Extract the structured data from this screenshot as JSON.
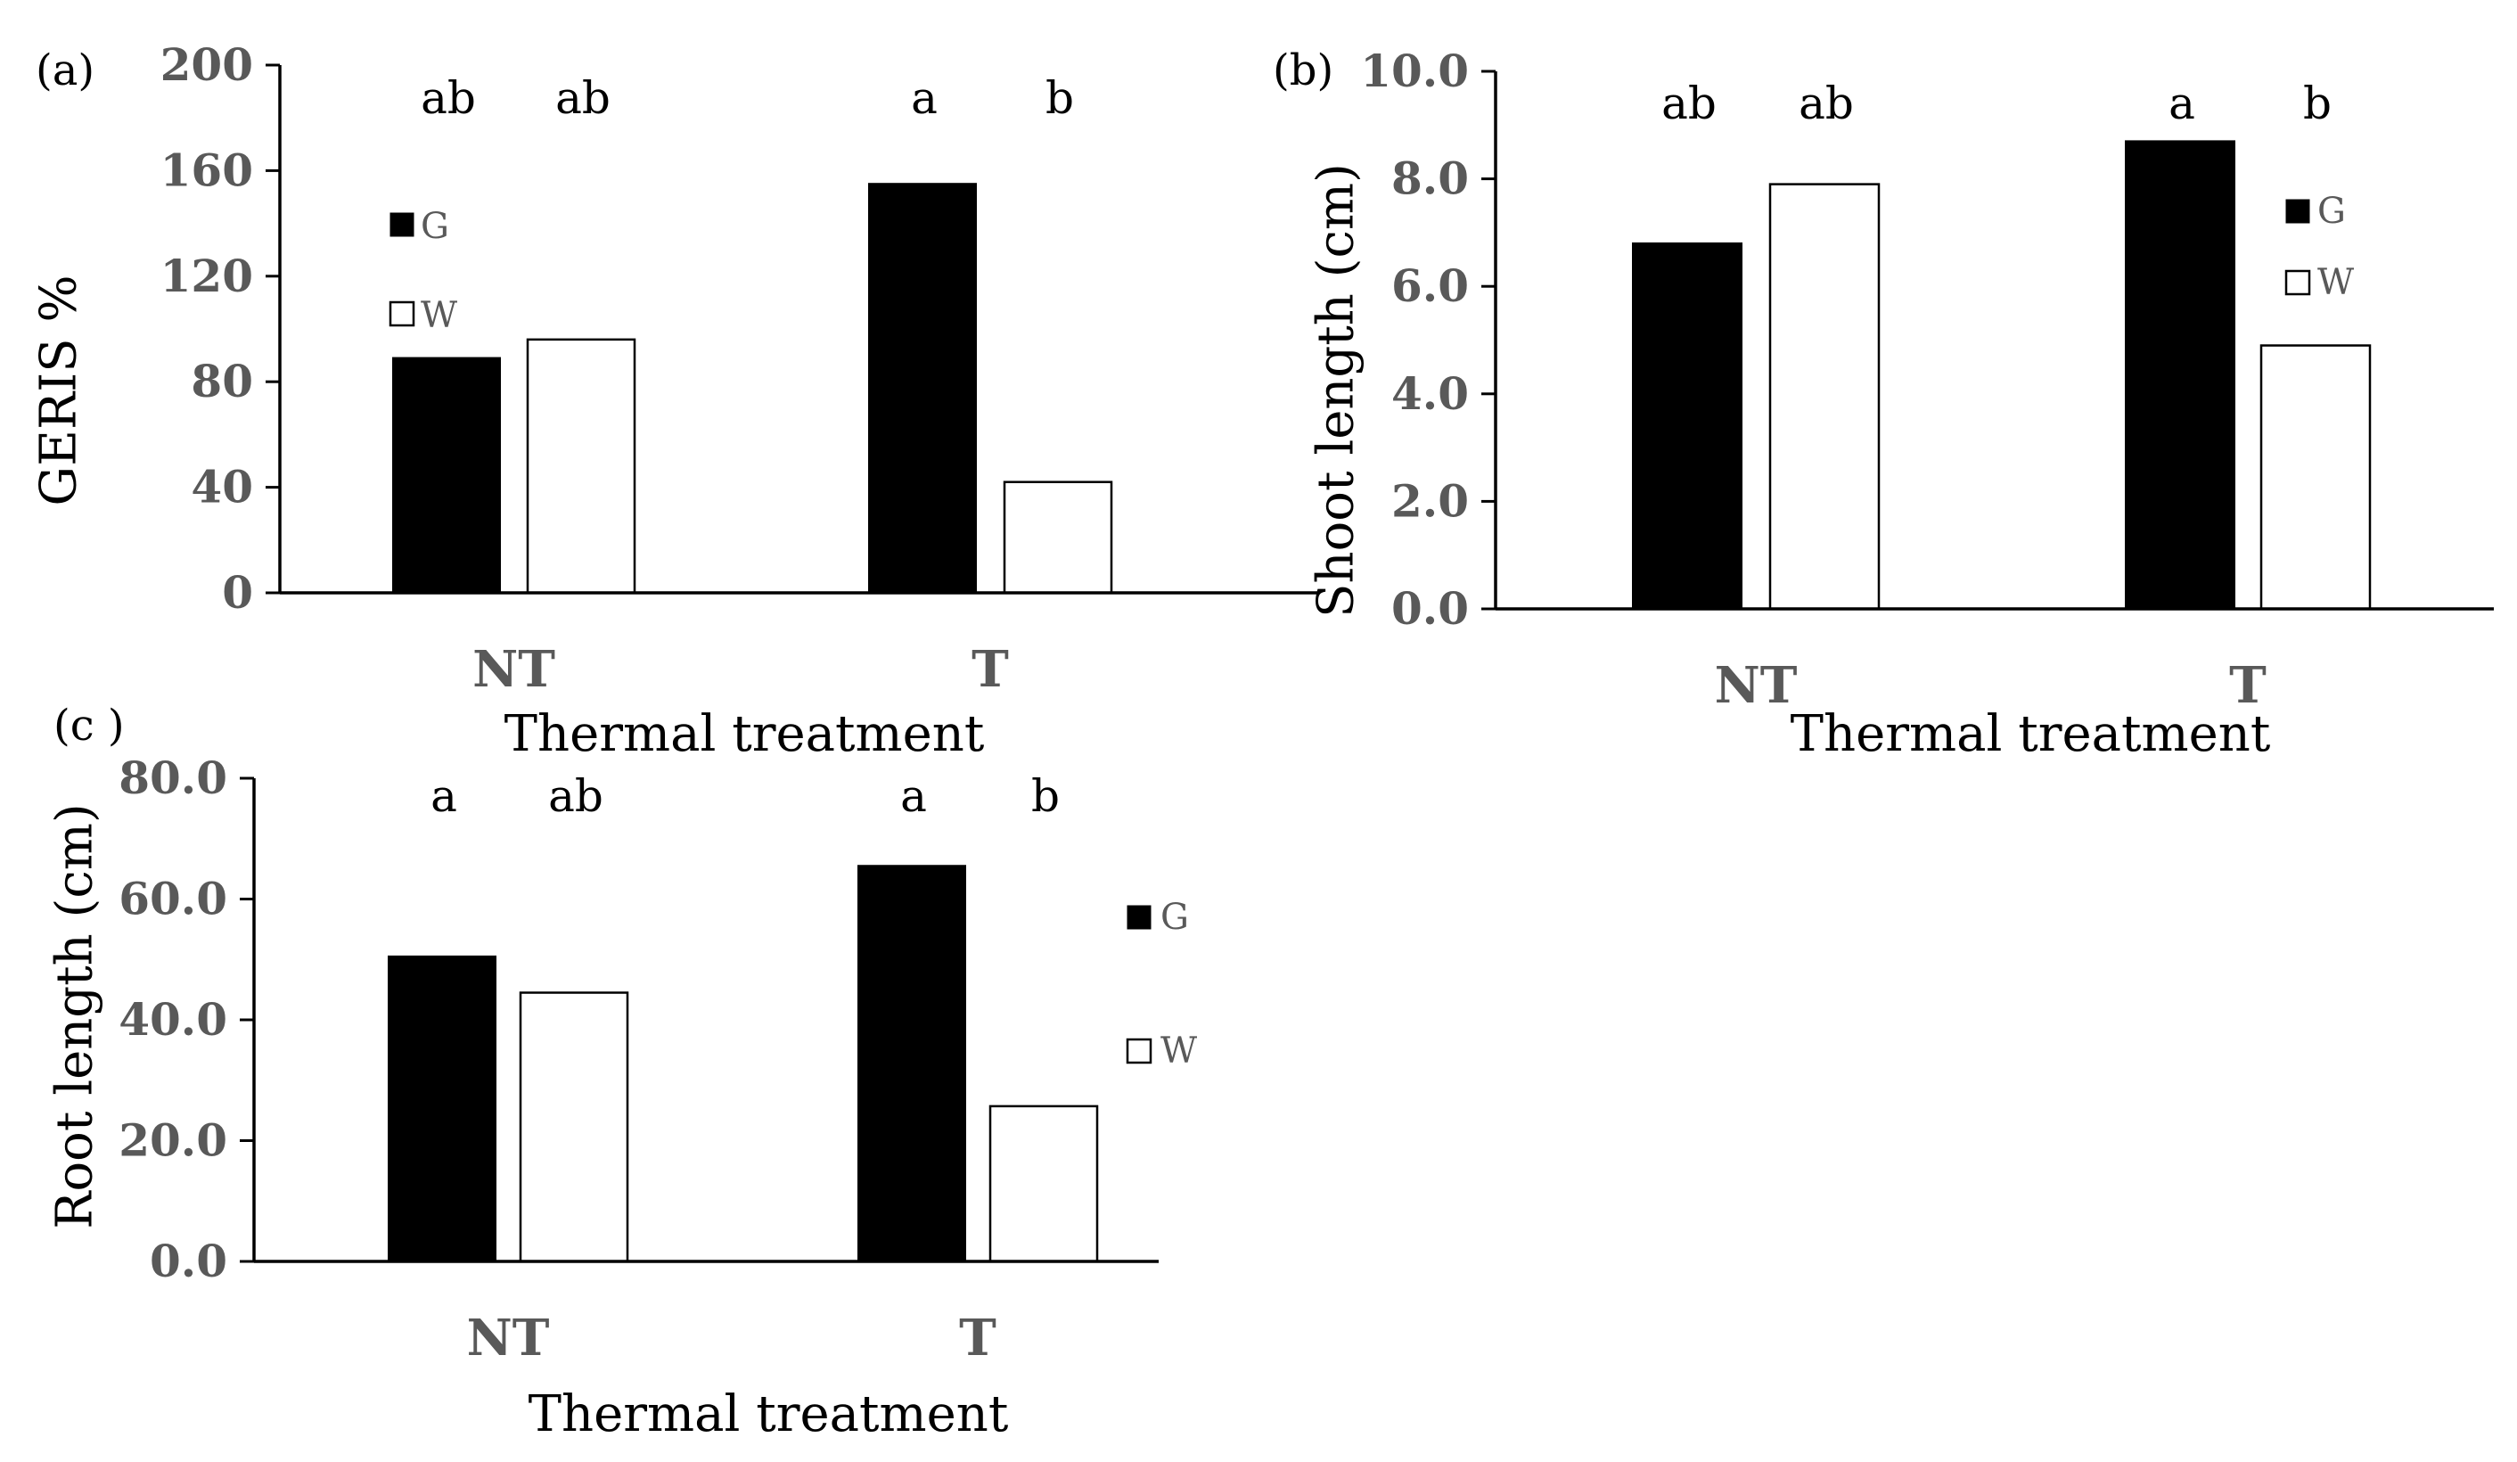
{
  "figure": {
    "panels": [
      {
        "label": "(a)",
        "chart_data": {
          "type": "bar",
          "title": "",
          "categories": [
            "NT",
            "T"
          ],
          "series": [
            {
              "name": "G",
              "values": [
                89,
                155
              ],
              "color": "#000000"
            },
            {
              "name": "W",
              "values": [
                96,
                42
              ],
              "color": "#ffffff"
            }
          ],
          "significance": [
            [
              "ab",
              "ab"
            ],
            [
              "a",
              "b"
            ]
          ],
          "xlabel": "Thermal treatment",
          "ylabel": "GERIS %",
          "ylim": [
            0,
            200
          ],
          "yticks": [
            "0",
            "40",
            "80",
            "120",
            "160",
            "200"
          ],
          "legend_placement": "upper-left"
        }
      },
      {
        "label": "(b)",
        "chart_data": {
          "type": "bar",
          "title": "",
          "categories": [
            "NT",
            "T"
          ],
          "series": [
            {
              "name": "G",
              "values": [
                6.8,
                8.7
              ],
              "color": "#000000"
            },
            {
              "name": "W",
              "values": [
                7.9,
                4.9
              ],
              "color": "#ffffff"
            }
          ],
          "significance": [
            [
              "ab",
              "ab"
            ],
            [
              "a",
              "b"
            ]
          ],
          "xlabel": "Thermal treatment",
          "ylabel": "Shoot length (cm)",
          "ylim": [
            0,
            10
          ],
          "yticks": [
            "0.0",
            "2.0",
            "4.0",
            "6.0",
            "8.0",
            "10.0"
          ],
          "legend_placement": "right"
        }
      },
      {
        "label": "(c )",
        "chart_data": {
          "type": "bar",
          "title": "",
          "categories": [
            "NT",
            "T"
          ],
          "series": [
            {
              "name": "G",
              "values": [
                50.5,
                65.5
              ],
              "color": "#000000"
            },
            {
              "name": "W",
              "values": [
                44.5,
                25.7
              ],
              "color": "#ffffff"
            }
          ],
          "significance": [
            [
              "a",
              "ab"
            ],
            [
              "a",
              "b"
            ]
          ],
          "xlabel": "Thermal treatment",
          "ylabel": "Root length (cm)",
          "ylim": [
            0,
            80
          ],
          "yticks": [
            "0.0",
            "20.0",
            "40.0",
            "60.0",
            "80.0"
          ],
          "legend_placement": "right"
        }
      }
    ]
  }
}
